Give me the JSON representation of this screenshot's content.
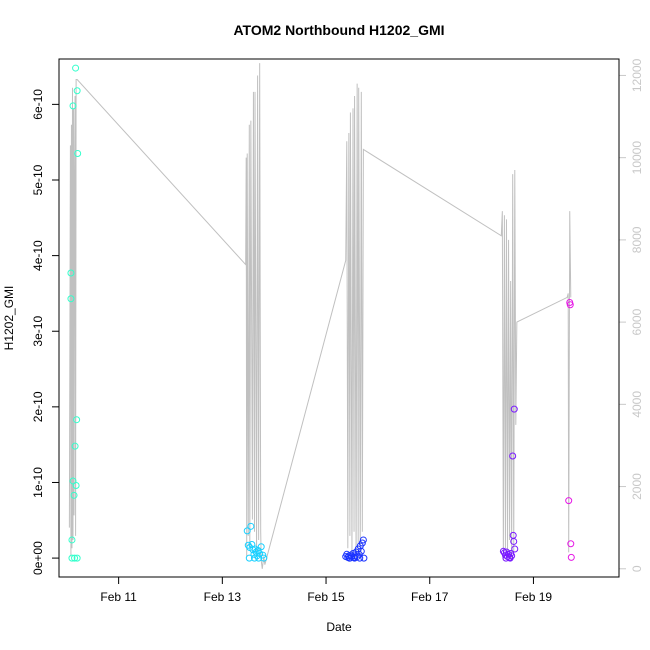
{
  "chart_data": {
    "type": "scatter",
    "title": "ATOM2 Northbound H1202_GMI",
    "xlabel": "Date",
    "ylabel": "H1202_GMI",
    "x_ticks": [
      "Feb 11",
      "Feb 13",
      "Feb 15",
      "Feb 17",
      "Feb 19"
    ],
    "x_tick_days": [
      11,
      13,
      15,
      17,
      19
    ],
    "xlim": [
      9.85,
      20.65
    ],
    "y_ticks": [
      "0e+00",
      "1e-10",
      "2e-10",
      "3e-10",
      "4e-10",
      "5e-10",
      "6e-10"
    ],
    "y_tick_values": [
      0,
      1e-10,
      2e-10,
      3e-10,
      4e-10,
      5e-10,
      6e-10
    ],
    "ylim": [
      -2.5e-11,
      6.6e-10
    ],
    "y2_ticks": [
      "0",
      "2000",
      "4000",
      "6000",
      "8000",
      "10000",
      "12000"
    ],
    "y2_tick_values": [
      0,
      2000,
      4000,
      6000,
      8000,
      10000,
      12000
    ],
    "y2lim": [
      -200,
      12400
    ],
    "points": [
      {
        "day": 10.08,
        "value": 3.77e-10,
        "color": "#33ffcc"
      },
      {
        "day": 10.08,
        "value": 3.43e-10,
        "color": "#33ffcc"
      },
      {
        "day": 10.1,
        "value": 2.4e-11,
        "color": "#33ffcc"
      },
      {
        "day": 10.12,
        "value": 1.02e-10,
        "color": "#33ffcc"
      },
      {
        "day": 10.12,
        "value": 5.98e-10,
        "color": "#33ffcc"
      },
      {
        "day": 10.14,
        "value": 8.3e-11,
        "color": "#33ffcc"
      },
      {
        "day": 10.16,
        "value": 1.48e-10,
        "color": "#33ffcc"
      },
      {
        "day": 10.17,
        "value": 6.48e-10,
        "color": "#33ffcc"
      },
      {
        "day": 10.18,
        "value": 9.6e-11,
        "color": "#33ffcc"
      },
      {
        "day": 10.19,
        "value": 1.83e-10,
        "color": "#33ffcc"
      },
      {
        "day": 10.2,
        "value": 6.18e-10,
        "color": "#33ffcc"
      },
      {
        "day": 10.21,
        "value": 5.35e-10,
        "color": "#33ffcc"
      },
      {
        "day": 10.1,
        "value": 0,
        "color": "#33ffcc"
      },
      {
        "day": 10.15,
        "value": 0,
        "color": "#33ffcc"
      },
      {
        "day": 10.2,
        "value": 0,
        "color": "#33ffcc"
      },
      {
        "day": 13.48,
        "value": 3.6e-11,
        "color": "#19d0ff"
      },
      {
        "day": 13.5,
        "value": 1.7e-11,
        "color": "#19d0ff"
      },
      {
        "day": 13.53,
        "value": 1.4e-11,
        "color": "#19d0ff"
      },
      {
        "day": 13.55,
        "value": 4.2e-11,
        "color": "#19d0ff"
      },
      {
        "day": 13.57,
        "value": 1.8e-11,
        "color": "#19d0ff"
      },
      {
        "day": 13.59,
        "value": 1.1e-11,
        "color": "#19d0ff"
      },
      {
        "day": 13.61,
        "value": 5e-12,
        "color": "#19d0ff"
      },
      {
        "day": 13.63,
        "value": 1.2e-11,
        "color": "#19d0ff"
      },
      {
        "day": 13.65,
        "value": 8e-12,
        "color": "#19d0ff"
      },
      {
        "day": 13.67,
        "value": 3e-12,
        "color": "#19d0ff"
      },
      {
        "day": 13.69,
        "value": 1e-11,
        "color": "#19d0ff"
      },
      {
        "day": 13.72,
        "value": 6e-12,
        "color": "#19d0ff"
      },
      {
        "day": 13.75,
        "value": 1.5e-11,
        "color": "#19d0ff"
      },
      {
        "day": 13.78,
        "value": 4e-12,
        "color": "#19d0ff"
      },
      {
        "day": 13.52,
        "value": 0,
        "color": "#19d0ff"
      },
      {
        "day": 13.62,
        "value": 0,
        "color": "#19d0ff"
      },
      {
        "day": 13.7,
        "value": 0,
        "color": "#19d0ff"
      },
      {
        "day": 13.8,
        "value": 0,
        "color": "#19d0ff"
      },
      {
        "day": 15.38,
        "value": 2e-12,
        "color": "#1a33ff"
      },
      {
        "day": 15.4,
        "value": 5e-12,
        "color": "#1a33ff"
      },
      {
        "day": 15.42,
        "value": 1e-12,
        "color": "#1a33ff"
      },
      {
        "day": 15.44,
        "value": 3e-12,
        "color": "#1a33ff"
      },
      {
        "day": 15.46,
        "value": 0,
        "color": "#1a33ff"
      },
      {
        "day": 15.48,
        "value": 4e-12,
        "color": "#1a33ff"
      },
      {
        "day": 15.5,
        "value": 2e-12,
        "color": "#1a33ff"
      },
      {
        "day": 15.52,
        "value": 6e-12,
        "color": "#1a33ff"
      },
      {
        "day": 15.54,
        "value": 1e-12,
        "color": "#1a33ff"
      },
      {
        "day": 15.56,
        "value": 3e-12,
        "color": "#1a33ff"
      },
      {
        "day": 15.58,
        "value": 8e-12,
        "color": "#1a33ff"
      },
      {
        "day": 15.6,
        "value": 2e-12,
        "color": "#1a33ff"
      },
      {
        "day": 15.62,
        "value": 1.2e-11,
        "color": "#1a33ff"
      },
      {
        "day": 15.64,
        "value": 5e-12,
        "color": "#1a33ff"
      },
      {
        "day": 15.66,
        "value": 1.6e-11,
        "color": "#1a33ff"
      },
      {
        "day": 15.68,
        "value": 9e-12,
        "color": "#1a33ff"
      },
      {
        "day": 15.7,
        "value": 2e-11,
        "color": "#1a33ff"
      },
      {
        "day": 15.72,
        "value": 2.4e-11,
        "color": "#1a33ff"
      },
      {
        "day": 15.45,
        "value": 0,
        "color": "#1a33ff"
      },
      {
        "day": 15.55,
        "value": 0,
        "color": "#1a33ff"
      },
      {
        "day": 15.65,
        "value": 0,
        "color": "#1a33ff"
      },
      {
        "day": 15.73,
        "value": 0,
        "color": "#1a33ff"
      },
      {
        "day": 18.42,
        "value": 9e-12,
        "color": "#7a1aff"
      },
      {
        "day": 18.44,
        "value": 7e-12,
        "color": "#7a1aff"
      },
      {
        "day": 18.46,
        "value": 4e-12,
        "color": "#7a1aff"
      },
      {
        "day": 18.48,
        "value": 8e-12,
        "color": "#7a1aff"
      },
      {
        "day": 18.5,
        "value": 2e-12,
        "color": "#7a1aff"
      },
      {
        "day": 18.52,
        "value": 5e-12,
        "color": "#7a1aff"
      },
      {
        "day": 18.54,
        "value": 1e-12,
        "color": "#7a1aff"
      },
      {
        "day": 18.56,
        "value": 6e-12,
        "color": "#7a1aff"
      },
      {
        "day": 18.58,
        "value": 3e-12,
        "color": "#7a1aff"
      },
      {
        "day": 18.6,
        "value": 1.35e-10,
        "color": "#7a1aff"
      },
      {
        "day": 18.61,
        "value": 3e-11,
        "color": "#7a1aff"
      },
      {
        "day": 18.62,
        "value": 2.2e-11,
        "color": "#7a1aff"
      },
      {
        "day": 18.63,
        "value": 1.97e-10,
        "color": "#7a1aff"
      },
      {
        "day": 18.64,
        "value": 1.2e-11,
        "color": "#7a1aff"
      },
      {
        "day": 18.47,
        "value": 0,
        "color": "#7a1aff"
      },
      {
        "day": 18.55,
        "value": 0,
        "color": "#7a1aff"
      },
      {
        "day": 19.68,
        "value": 7.6e-11,
        "color": "#e619e6"
      },
      {
        "day": 19.7,
        "value": 3.38e-10,
        "color": "#e619e6"
      },
      {
        "day": 19.71,
        "value": 3.35e-10,
        "color": "#e619e6"
      },
      {
        "day": 19.72,
        "value": 1.9e-11,
        "color": "#e619e6"
      },
      {
        "day": 19.73,
        "value": 1e-12,
        "color": "#e619e6"
      }
    ],
    "line_series": {
      "color": "#c0c0c0",
      "axis": "right",
      "x": [
        10.05,
        10.07,
        10.08,
        10.09,
        10.1,
        10.11,
        10.12,
        10.13,
        10.14,
        10.15,
        10.16,
        10.17,
        10.18,
        10.2,
        13.45,
        13.46,
        13.47,
        13.48,
        13.5,
        13.52,
        13.53,
        13.55,
        13.58,
        13.6,
        13.62,
        13.63,
        13.66,
        13.68,
        13.7,
        13.72,
        13.74,
        13.75,
        13.77,
        13.8,
        13.82,
        15.38,
        15.4,
        15.42,
        15.44,
        15.46,
        15.47,
        15.5,
        15.52,
        15.54,
        15.55,
        15.58,
        15.6,
        15.62,
        15.63,
        15.66,
        15.68,
        15.7,
        15.72,
        18.38,
        18.4,
        18.42,
        18.44,
        18.46,
        18.48,
        18.5,
        18.52,
        18.54,
        18.56,
        18.58,
        18.6,
        18.62,
        18.64,
        18.66,
        18.68,
        19.65,
        19.67,
        19.68,
        19.7,
        19.72
      ],
      "y": [
        1000,
        10300,
        300,
        10800,
        500,
        11700,
        700,
        11200,
        1300,
        9500,
        11500,
        800,
        11900,
        11900,
        7400,
        10000,
        300,
        10100,
        800,
        10800,
        500,
        10900,
        1200,
        11600,
        900,
        11600,
        300,
        12000,
        700,
        12300,
        900,
        200,
        0,
        300,
        100,
        7500,
        10400,
        500,
        10600,
        800,
        11100,
        300,
        11200,
        900,
        11500,
        200,
        11800,
        600,
        11700,
        300,
        11600,
        900,
        10200,
        8100,
        8700,
        200,
        8600,
        500,
        8500,
        300,
        8000,
        700,
        7000,
        200,
        9600,
        400,
        9700,
        3500,
        6000,
        6600,
        6700,
        400,
        8700,
        6600
      ],
      "note": ""
    }
  }
}
